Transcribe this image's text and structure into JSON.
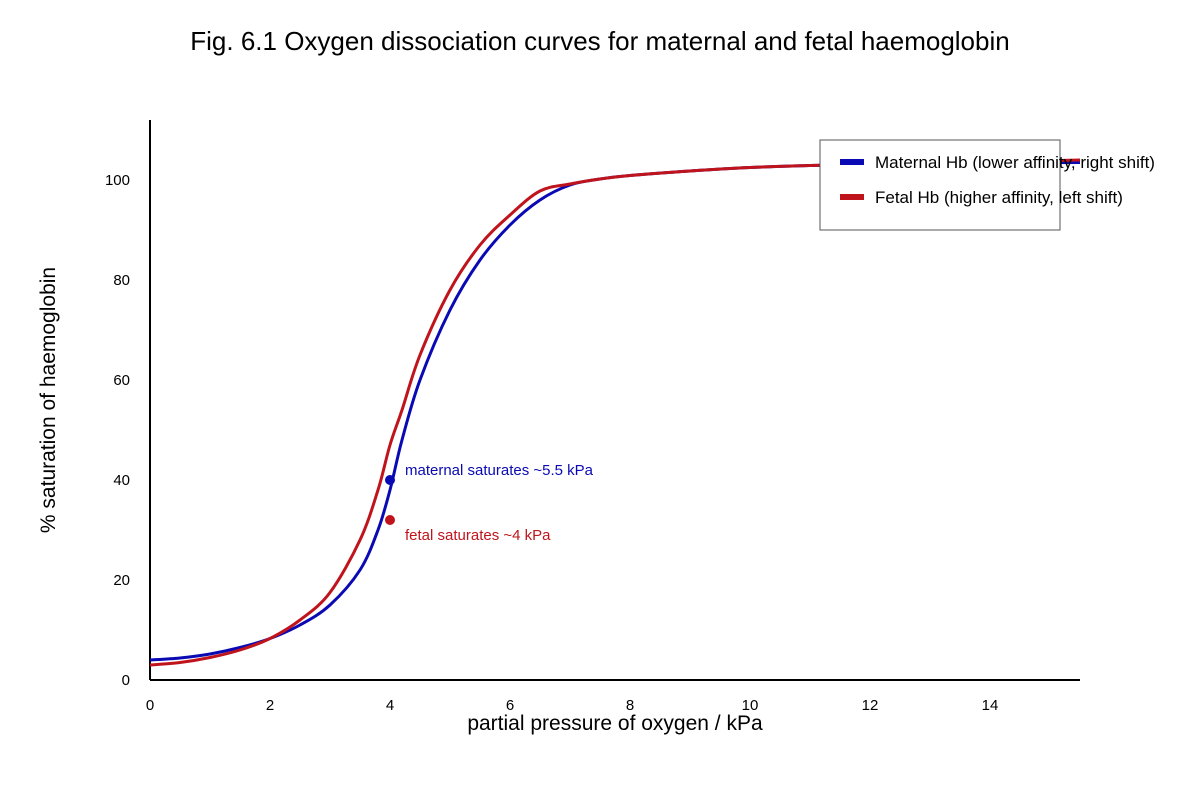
{
  "chart_data": {
    "type": "line",
    "title": "Fig. 6.1 Oxygen dissociation curves for maternal and fetal haemoglobin",
    "xlabel": "partial pressure of oxygen / kPa",
    "ylabel": "% saturation of haemoglobin",
    "xlim": [
      0,
      15.5
    ],
    "ylim": [
      0,
      112
    ],
    "x_ticks": [
      0,
      2,
      4,
      6,
      8,
      10,
      12,
      14
    ],
    "y_ticks": [
      0,
      20,
      40,
      60,
      80,
      100
    ],
    "grid": false,
    "legend_position": "top-right",
    "series": [
      {
        "name": "Maternal Hb (lower affinity, right shift)",
        "color": "#0a0ab4",
        "points": [
          [
            0,
            4
          ],
          [
            0.5,
            4.4
          ],
          [
            1,
            5.2
          ],
          [
            1.5,
            6.5
          ],
          [
            2,
            8.3
          ],
          [
            2.5,
            11
          ],
          [
            3,
            15
          ],
          [
            3.5,
            22
          ],
          [
            3.8,
            30
          ],
          [
            4,
            38
          ],
          [
            4.2,
            48
          ],
          [
            4.5,
            60
          ],
          [
            5,
            74
          ],
          [
            5.5,
            84
          ],
          [
            6,
            91
          ],
          [
            6.5,
            96
          ],
          [
            7,
            99
          ],
          [
            7.5,
            100.2
          ],
          [
            8,
            100.9
          ],
          [
            9,
            101.8
          ],
          [
            10,
            102.5
          ],
          [
            11,
            102.9
          ],
          [
            12,
            103.1
          ],
          [
            13,
            103.3
          ],
          [
            14,
            103.4
          ],
          [
            15.5,
            103.5
          ]
        ]
      },
      {
        "name": "Fetal Hb (higher affinity, left shift)",
        "color": "#c0141c",
        "points": [
          [
            0,
            3
          ],
          [
            0.5,
            3.5
          ],
          [
            1,
            4.5
          ],
          [
            1.5,
            6
          ],
          [
            2,
            8.3
          ],
          [
            2.5,
            12
          ],
          [
            3,
            17.5
          ],
          [
            3.5,
            28
          ],
          [
            3.8,
            38
          ],
          [
            4,
            47
          ],
          [
            4.2,
            54
          ],
          [
            4.5,
            65
          ],
          [
            5,
            78
          ],
          [
            5.5,
            87
          ],
          [
            6,
            93
          ],
          [
            6.5,
            97.8
          ],
          [
            7,
            99.2
          ],
          [
            7.5,
            100.2
          ],
          [
            8,
            100.9
          ],
          [
            9,
            101.8
          ],
          [
            10,
            102.5
          ],
          [
            11,
            102.9
          ],
          [
            12,
            103.2
          ],
          [
            13,
            103.4
          ],
          [
            14,
            103.6
          ],
          [
            15.5,
            104
          ]
        ]
      }
    ],
    "annotations": [
      {
        "text": "maternal saturates ~5.5 kPa",
        "x": 4,
        "y": 40,
        "color": "#0a0ab4"
      },
      {
        "text": "fetal saturates ~4 kPa",
        "x": 4,
        "y": 32,
        "color": "#c0141c"
      }
    ]
  }
}
